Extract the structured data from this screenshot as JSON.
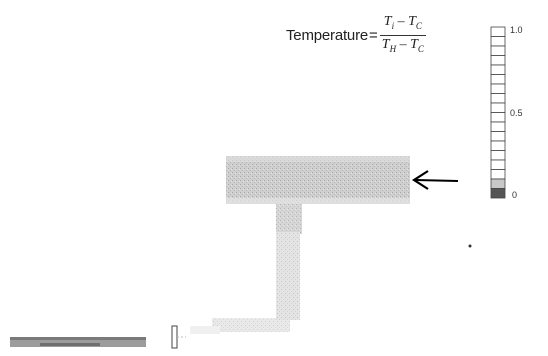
{
  "legend": {
    "word": "Temperature",
    "equals": "=",
    "numerator_main": "T",
    "numerator_sub1": "i",
    "numerator_minus": " – ",
    "numerator_main2": "T",
    "numerator_sub2": "C",
    "denominator_main": "T",
    "denominator_sub1": "H",
    "denominator_minus": " – ",
    "denominator_main2": "T",
    "denominator_sub2": "C"
  },
  "colorbar": {
    "tick_top": "1.0",
    "tick_mid": "0.5",
    "tick_bottom": "0",
    "segments": 18,
    "segment_fill": "#ffffff",
    "bottom_fills": [
      "#c8c8c8",
      "#555555"
    ],
    "border_color": "#444444"
  },
  "colors": {
    "plume": "#c4c4c4",
    "plume_dark": "#9a9a9a",
    "arrow": "#000000"
  }
}
